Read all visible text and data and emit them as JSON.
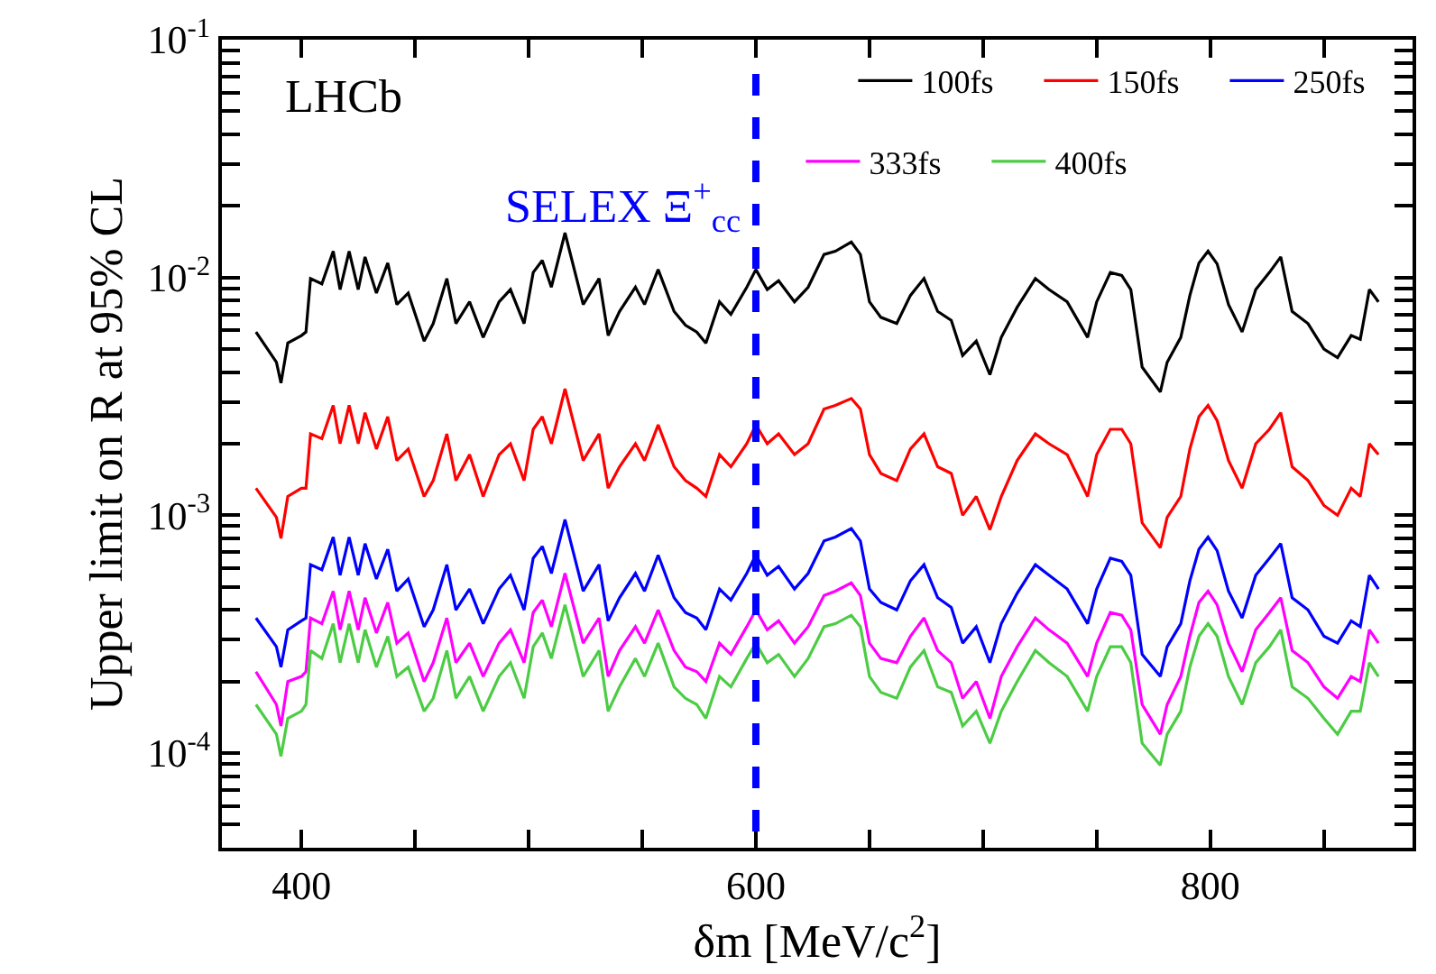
{
  "chart_data": {
    "type": "line",
    "xlabel": "δm [MeV/c$^{2}$]",
    "ylabel": "Upper limit on R at 95% CL",
    "annotations": [
      "LHCb"
    ],
    "log": "y",
    "legend": "top right",
    "marker": "none",
    "line_style": "solid",
    "xlim": [
      365,
      889
    ],
    "ylim": [
      4e-05,
      0.1
    ],
    "xticks": [
      400,
      {
        "value": 450,
        "label": null
      },
      {
        "value": 500,
        "label": null
      },
      {
        "value": 550,
        "label": null
      },
      600,
      {
        "value": 650,
        "label": null
      },
      {
        "value": 700,
        "label": null
      },
      {
        "value": 750,
        "label": null
      },
      800,
      {
        "value": 850,
        "label": null
      }
    ],
    "yticks": [
      {
        "value": 5e-05,
        "label": null
      },
      {
        "value": 6e-05,
        "label": null
      },
      {
        "value": 7e-05,
        "label": null
      },
      {
        "value": 8e-05,
        "label": null
      },
      {
        "value": 9e-05,
        "label": null
      },
      {
        "value": 0.0001,
        "label": "10$^{-4}$"
      },
      {
        "value": 0.0002,
        "label": null
      },
      {
        "value": 0.0003,
        "label": null
      },
      {
        "value": 0.0004,
        "label": null
      },
      {
        "value": 0.0005,
        "label": null
      },
      {
        "value": 0.0006,
        "label": null
      },
      {
        "value": 0.0007,
        "label": null
      },
      {
        "value": 0.0008,
        "label": null
      },
      {
        "value": 0.0009,
        "label": null
      },
      {
        "value": 0.001,
        "label": "10$^{-3}$"
      },
      {
        "value": 0.002,
        "label": null
      },
      {
        "value": 0.003,
        "label": null
      },
      {
        "value": 0.004,
        "label": null
      },
      {
        "value": 0.005,
        "label": null
      },
      {
        "value": 0.006,
        "label": null
      },
      {
        "value": 0.007,
        "label": null
      },
      {
        "value": 0.008,
        "label": null
      },
      {
        "value": 0.009,
        "label": null
      },
      {
        "value": 0.01,
        "label": "10$^{-2}$"
      },
      {
        "value": 0.02,
        "label": null
      },
      {
        "value": 0.03,
        "label": null
      },
      {
        "value": 0.04,
        "label": null
      },
      {
        "value": 0.05,
        "label": null
      },
      {
        "value": 0.06,
        "label": null
      },
      {
        "value": 0.07,
        "label": null
      },
      {
        "value": 0.08,
        "label": null
      },
      {
        "value": 0.09,
        "label": null
      },
      {
        "value": 0.1,
        "label": "10$^{-1}$"
      }
    ],
    "ref_lines": [
      {
        "axis": "x",
        "value": 600,
        "label": "SELEX Ξ$^{+}$$_{cc}$",
        "color": "#0000ff",
        "line_style": "dashed"
      }
    ],
    "x": [
      380,
      389,
      391,
      394,
      400,
      402,
      404,
      409,
      414,
      417,
      421,
      425,
      428,
      433,
      438,
      442,
      447,
      454,
      458,
      464,
      468,
      474,
      480,
      487,
      492,
      498,
      502,
      506,
      510,
      516,
      524,
      531,
      535,
      540,
      547,
      551,
      557,
      564,
      569,
      574,
      578,
      584,
      589,
      596,
      600,
      605,
      610,
      617,
      623,
      630,
      635,
      642,
      646,
      650,
      655,
      662,
      668,
      674,
      680,
      686,
      691,
      697,
      703,
      708,
      715,
      723,
      729,
      737,
      746,
      750,
      756,
      761,
      765,
      770,
      778,
      781,
      787,
      791,
      795,
      799,
      803,
      808,
      814,
      820,
      826,
      831,
      836,
      843,
      850,
      856,
      862,
      866,
      870,
      874
    ],
    "series": [
      {
        "name": "100fs",
        "color": "#000000",
        "values": [
          0.0059,
          0.0044,
          0.0036,
          0.0053,
          0.0057,
          0.0059,
          0.0099,
          0.0094,
          0.0129,
          0.0089,
          0.0129,
          0.0089,
          0.0122,
          0.0086,
          0.0115,
          0.0077,
          0.0086,
          0.0054,
          0.0064,
          0.0099,
          0.0064,
          0.0079,
          0.0056,
          0.0079,
          0.0089,
          0.0064,
          0.0105,
          0.0118,
          0.0091,
          0.0154,
          0.0077,
          0.0099,
          0.0057,
          0.0072,
          0.0091,
          0.0077,
          0.0108,
          0.0072,
          0.0063,
          0.0059,
          0.0053,
          0.0079,
          0.007,
          0.0091,
          0.0108,
          0.0089,
          0.0097,
          0.0079,
          0.0091,
          0.0125,
          0.0129,
          0.0141,
          0.0125,
          0.0079,
          0.0068,
          0.0064,
          0.0084,
          0.0099,
          0.0072,
          0.0066,
          0.0047,
          0.0054,
          0.0039,
          0.0056,
          0.0075,
          0.0099,
          0.0089,
          0.0079,
          0.0056,
          0.0079,
          0.0105,
          0.0102,
          0.0089,
          0.0042,
          0.0033,
          0.0044,
          0.0056,
          0.0084,
          0.0115,
          0.0129,
          0.0114,
          0.0077,
          0.0059,
          0.0089,
          0.0105,
          0.0122,
          0.0072,
          0.0064,
          0.005,
          0.0046,
          0.0057,
          0.0055,
          0.0089,
          0.0079
        ]
      },
      {
        "name": "150fs",
        "color": "#ff0000",
        "values": [
          0.0013,
          0.00098,
          0.0008,
          0.0012,
          0.0013,
          0.0013,
          0.0022,
          0.0021,
          0.0029,
          0.002,
          0.0029,
          0.002,
          0.0027,
          0.0019,
          0.0026,
          0.0017,
          0.0019,
          0.0012,
          0.0014,
          0.0022,
          0.0014,
          0.0018,
          0.0012,
          0.0018,
          0.002,
          0.0014,
          0.0023,
          0.0026,
          0.002,
          0.0034,
          0.0017,
          0.0022,
          0.0013,
          0.0016,
          0.002,
          0.0017,
          0.0024,
          0.0016,
          0.0014,
          0.0013,
          0.0012,
          0.0018,
          0.0016,
          0.002,
          0.0024,
          0.002,
          0.0022,
          0.0018,
          0.002,
          0.0028,
          0.0029,
          0.0031,
          0.0028,
          0.0018,
          0.0015,
          0.0014,
          0.0019,
          0.0022,
          0.0016,
          0.0015,
          0.001,
          0.0012,
          0.00087,
          0.0012,
          0.0017,
          0.0022,
          0.002,
          0.0018,
          0.0012,
          0.0018,
          0.0023,
          0.0023,
          0.002,
          0.00093,
          0.00073,
          0.00098,
          0.0012,
          0.0019,
          0.0026,
          0.0029,
          0.0025,
          0.0017,
          0.0013,
          0.002,
          0.0023,
          0.0027,
          0.0016,
          0.0014,
          0.0011,
          0.001,
          0.0013,
          0.0012,
          0.002,
          0.0018
        ]
      },
      {
        "name": "250fs",
        "color": "#0000ff",
        "values": [
          0.00037,
          0.00028,
          0.00023,
          0.00033,
          0.00036,
          0.00037,
          0.00062,
          0.00059,
          0.00081,
          0.00056,
          0.00081,
          0.00056,
          0.00076,
          0.00054,
          0.00072,
          0.00048,
          0.00054,
          0.00034,
          0.0004,
          0.00062,
          0.0004,
          0.00049,
          0.00035,
          0.00049,
          0.00056,
          0.0004,
          0.00066,
          0.00074,
          0.00057,
          0.00096,
          0.00048,
          0.00062,
          0.00036,
          0.00045,
          0.00057,
          0.00048,
          0.00068,
          0.00045,
          0.00039,
          0.00037,
          0.00033,
          0.00049,
          0.00044,
          0.00057,
          0.00068,
          0.00056,
          0.00061,
          0.00049,
          0.00057,
          0.00078,
          0.00081,
          0.00088,
          0.00078,
          0.00049,
          0.00043,
          0.0004,
          0.00053,
          0.00062,
          0.00045,
          0.00041,
          0.00029,
          0.00034,
          0.00024,
          0.00035,
          0.00047,
          0.00062,
          0.00056,
          0.00049,
          0.00035,
          0.00049,
          0.00066,
          0.00064,
          0.00056,
          0.00026,
          0.00021,
          0.00028,
          0.00035,
          0.00053,
          0.00072,
          0.00081,
          0.00071,
          0.00048,
          0.00037,
          0.00056,
          0.00066,
          0.00076,
          0.00045,
          0.0004,
          0.00031,
          0.00029,
          0.00036,
          0.00034,
          0.00056,
          0.00049
        ]
      },
      {
        "name": "333fs",
        "color": "#ff00ff",
        "values": [
          0.00022,
          0.00016,
          0.00013,
          0.0002,
          0.00021,
          0.00022,
          0.00037,
          0.00035,
          0.00048,
          0.00033,
          0.00048,
          0.00033,
          0.00045,
          0.00032,
          0.00043,
          0.00029,
          0.00032,
          0.0002,
          0.00024,
          0.00037,
          0.00024,
          0.00029,
          0.00021,
          0.00029,
          0.00033,
          0.00024,
          0.00039,
          0.00044,
          0.00034,
          0.00057,
          0.00029,
          0.00037,
          0.00021,
          0.00027,
          0.00034,
          0.00029,
          0.0004,
          0.00027,
          0.00023,
          0.00022,
          0.0002,
          0.00029,
          0.00026,
          0.00034,
          0.0004,
          0.00033,
          0.00036,
          0.00029,
          0.00034,
          0.00046,
          0.00048,
          0.00052,
          0.00046,
          0.00029,
          0.00025,
          0.00024,
          0.00031,
          0.00037,
          0.00027,
          0.00024,
          0.00017,
          0.0002,
          0.00014,
          0.00021,
          0.00028,
          0.00037,
          0.00033,
          0.00029,
          0.00021,
          0.00029,
          0.00039,
          0.00038,
          0.00033,
          0.00016,
          0.00012,
          0.00016,
          0.00021,
          0.00031,
          0.00043,
          0.00048,
          0.00042,
          0.00029,
          0.00022,
          0.00033,
          0.00039,
          0.00045,
          0.00027,
          0.00024,
          0.00019,
          0.00017,
          0.00021,
          0.0002,
          0.00033,
          0.00029
        ]
      },
      {
        "name": "400fs",
        "color": "#4ccc44",
        "values": [
          0.00016,
          0.00012,
          9.7e-05,
          0.00014,
          0.00015,
          0.00016,
          0.00027,
          0.00025,
          0.00035,
          0.00024,
          0.00035,
          0.00024,
          0.00033,
          0.00023,
          0.00031,
          0.00021,
          0.00023,
          0.00015,
          0.00017,
          0.00027,
          0.00017,
          0.00021,
          0.00015,
          0.00021,
          0.00024,
          0.00017,
          0.00028,
          0.00032,
          0.00025,
          0.00042,
          0.00021,
          0.00027,
          0.00015,
          0.00019,
          0.00025,
          0.00021,
          0.00029,
          0.00019,
          0.00017,
          0.00016,
          0.00014,
          0.00021,
          0.00019,
          0.00025,
          0.00029,
          0.00024,
          0.00026,
          0.00021,
          0.00025,
          0.00034,
          0.00035,
          0.00038,
          0.00034,
          0.00021,
          0.00018,
          0.00017,
          0.00023,
          0.00027,
          0.00019,
          0.00018,
          0.00013,
          0.00015,
          0.00011,
          0.00015,
          0.0002,
          0.00027,
          0.00024,
          0.00021,
          0.00015,
          0.00021,
          0.00028,
          0.00028,
          0.00024,
          0.00011,
          8.9e-05,
          0.00012,
          0.00015,
          0.00023,
          0.00031,
          0.00035,
          0.00031,
          0.00021,
          0.00016,
          0.00024,
          0.00028,
          0.00033,
          0.00019,
          0.00017,
          0.00014,
          0.00012,
          0.00015,
          0.00015,
          0.00024,
          0.00021
        ]
      }
    ]
  }
}
